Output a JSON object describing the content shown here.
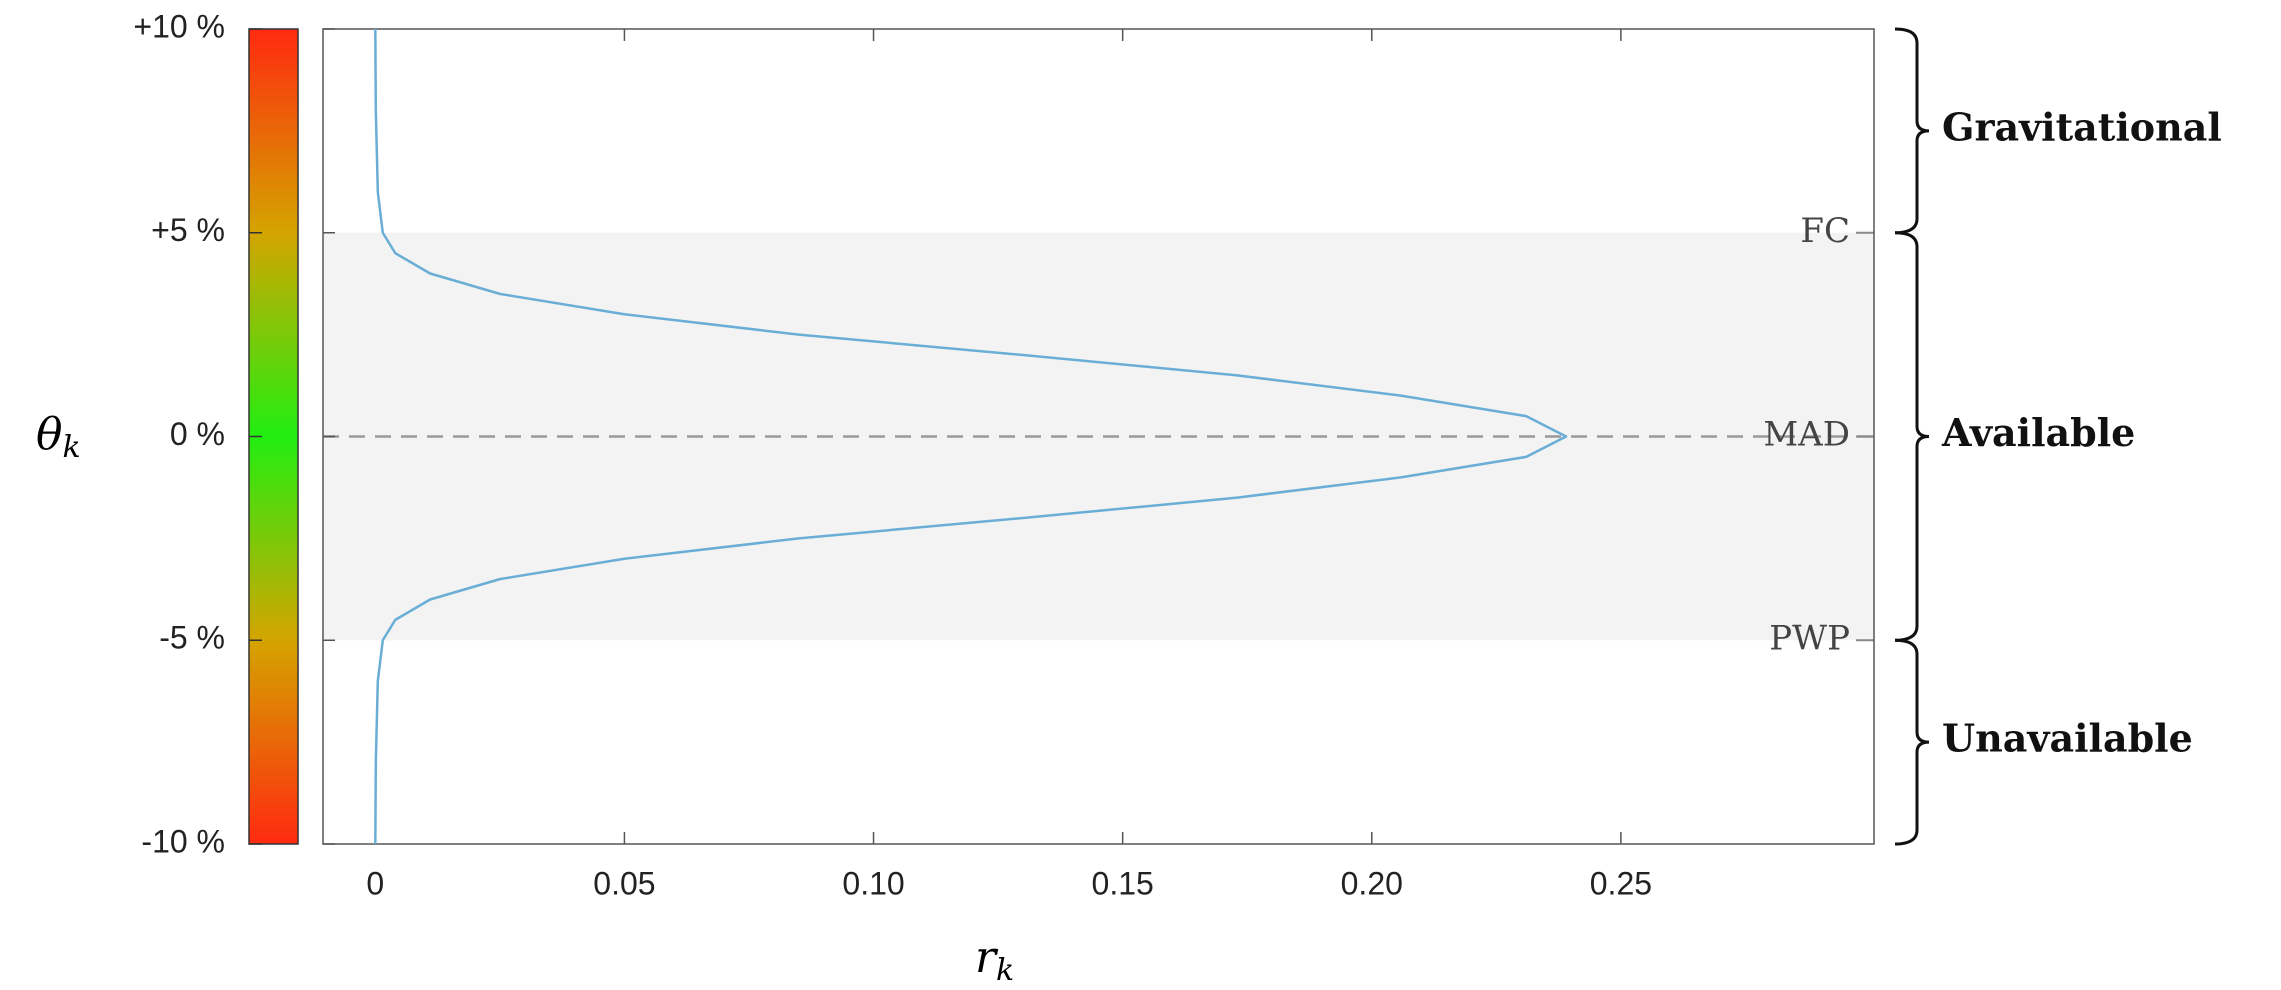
{
  "chart_data": {
    "type": "line",
    "orientation": "horizontal",
    "x_label": "r",
    "x_label_sub": "k",
    "y_label": "θ",
    "y_label_sub": "k",
    "x": [
      -10,
      -8,
      -6,
      -5,
      -4.5,
      -4,
      -3.5,
      -3,
      -2.5,
      -2,
      -1.5,
      -1,
      -0.5,
      0,
      0.5,
      1,
      1.5,
      2,
      2.5,
      3,
      3.5,
      4,
      4.5,
      5,
      6,
      8,
      10
    ],
    "series": [
      {
        "name": "r",
        "color": "#6aaed6",
        "values": [
          0,
          0.0001,
          0.0005,
          0.0015,
          0.004,
          0.011,
          0.025,
          0.05,
          0.085,
          0.13,
          0.173,
          0.206,
          0.231,
          0.239,
          0.231,
          0.206,
          0.173,
          0.13,
          0.085,
          0.05,
          0.025,
          0.011,
          0.004,
          0.0015,
          0.0005,
          0.0001,
          0
        ]
      }
    ],
    "xlim": [
      -0.0105,
      0.3008
    ],
    "xticks": [
      0,
      0.05,
      {
        "value": 0.1,
        "label": "0.10"
      },
      0.15,
      {
        "value": 0.2,
        "label": "0.20"
      },
      0.25
    ],
    "ylim": [
      -10,
      10
    ],
    "yticks": [
      {
        "value": 10,
        "label": "+10 %"
      },
      {
        "value": 5,
        "label": "+5 %"
      },
      {
        "value": 0,
        "label": "0 %"
      },
      {
        "value": -5,
        "label": "-5 %"
      },
      {
        "value": -10,
        "label": "-10 %"
      }
    ],
    "shaded_range": [
      -5,
      5
    ],
    "reference_lines": [
      {
        "value": 5,
        "label": "FC"
      },
      {
        "value": 0,
        "label": "MAD",
        "dashed": true
      },
      {
        "value": -5,
        "label": "PWP"
      }
    ],
    "regions": [
      {
        "label": "Gravitational",
        "range": [
          5,
          10
        ]
      },
      {
        "label": "Available",
        "range": [
          -5,
          5
        ]
      },
      {
        "label": "Unavailable",
        "range": [
          -10,
          -5
        ]
      }
    ]
  }
}
